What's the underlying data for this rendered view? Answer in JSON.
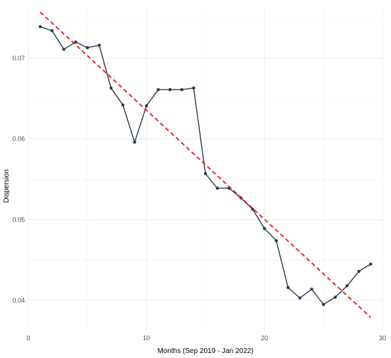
{
  "chart_data": {
    "type": "line",
    "xlabel": "Months (Sep 2019 - Jan 2022)",
    "ylabel": "Dispersion",
    "xlim": [
      0,
      30
    ],
    "ylim": [
      0.0363,
      0.0765
    ],
    "x_ticks": [
      0,
      10,
      20,
      30
    ],
    "x_tick_labels": [
      "0",
      "10",
      "20",
      "30"
    ],
    "y_ticks": [
      0.04,
      0.05,
      0.06,
      0.07
    ],
    "y_tick_labels": [
      "0.04",
      "0.05",
      "0.06",
      "0.07"
    ],
    "grid": true,
    "legend": "none",
    "series": [
      {
        "style": "line-with-points",
        "color": "#2b3b4e",
        "x": [
          1,
          2,
          3,
          4,
          5,
          6,
          7,
          8,
          9,
          10,
          11,
          12,
          13,
          14,
          15,
          16,
          17,
          18,
          19,
          20,
          21,
          22,
          23,
          24,
          25,
          26,
          27,
          28,
          29
        ],
        "y": [
          0.0739,
          0.0734,
          0.0711,
          0.072,
          0.0713,
          0.0716,
          0.0663,
          0.0642,
          0.0596,
          0.0641,
          0.0661,
          0.0661,
          0.0661,
          0.0663,
          0.0557,
          0.0539,
          0.0539,
          0.0527,
          0.0513,
          0.0489,
          0.0474,
          0.0416,
          0.0403,
          0.0414,
          0.0395,
          0.0404,
          0.0418,
          0.0436,
          0.0445
        ]
      },
      {
        "style": "dashed-trend",
        "color": "#e41a1c",
        "x": [
          1,
          29
        ],
        "y": [
          0.0757,
          0.0379
        ]
      }
    ]
  }
}
